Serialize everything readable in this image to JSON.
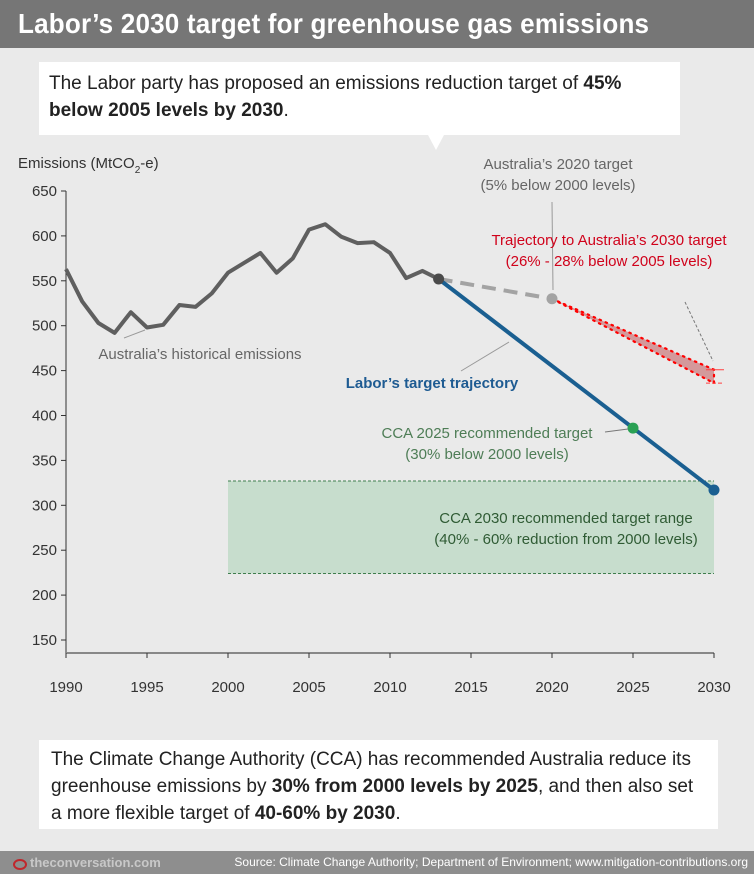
{
  "header": {
    "title": "Labor’s 2030 target for greenhouse gas emissions"
  },
  "callout": {
    "text_before": "The Labor party has proposed an emissions reduction target of ",
    "text_bold": "45% below 2005 levels by 2030",
    "text_after": "."
  },
  "bottom_note": {
    "part1": "The Climate Change Authority (CCA) has recommended Australia reduce its greenhouse emissions by ",
    "bold1": "30% from 2000 levels by 2025",
    "part2": ", and then also set a more flexible target of ",
    "bold2": "40-60% by 2030",
    "part3": "."
  },
  "footer": {
    "logo_text": "theconversation.com",
    "source": "Source: Climate Change Authority; Department of Environment; www.mitigation-contributions.org"
  },
  "chart_data": {
    "type": "line",
    "title": "Labor’s 2030 target for greenhouse gas emissions",
    "ylabel": "Emissions (MtCO2-e)",
    "ylabel_main": "Emissions (MtCO",
    "ylabel_sub": "2",
    "ylabel_tail": "-e)",
    "xlabel": "",
    "xlim": [
      1990,
      2030
    ],
    "ylim": [
      135,
      650
    ],
    "grid": false,
    "x_ticks": [
      "1990",
      "1995",
      "2000",
      "2005",
      "2010",
      "2015",
      "2020",
      "2025",
      "2030"
    ],
    "y_ticks": [
      "650",
      "600",
      "550",
      "500",
      "450",
      "400",
      "350",
      "300",
      "250",
      "200",
      "150"
    ],
    "series": [
      {
        "name": "Australia’s historical emissions",
        "color": "#5f5f5f",
        "x": [
          1990,
          1991,
          1992,
          1993,
          1994,
          1995,
          1996,
          1997,
          1998,
          1999,
          2000,
          2001,
          2002,
          2003,
          2004,
          2005,
          2006,
          2007,
          2008,
          2009,
          2010,
          2011,
          2012,
          2013
        ],
        "y": [
          563,
          527,
          503,
          492,
          515,
          498,
          501,
          523,
          521,
          536,
          559,
          570,
          581,
          559,
          575,
          607,
          613,
          599,
          592,
          593,
          581,
          553,
          561,
          552
        ]
      },
      {
        "name": "Australia’s 2020 target (5% below 2000 levels)",
        "color": "#a3a3a3",
        "style": "dashed",
        "x": [
          2013,
          2020
        ],
        "y": [
          552,
          530
        ]
      },
      {
        "name": "Labor’s target trajectory",
        "color": "#1a5f91",
        "x": [
          2013,
          2030
        ],
        "y": [
          552,
          317
        ]
      }
    ],
    "trajectory_2030_band": {
      "name": "Trajectory to Australia’s 2030 target (26% - 28% below 2005 levels)",
      "color": "#e3000f",
      "from": {
        "x": 2020,
        "y": 530
      },
      "to_upper": {
        "x": 2030,
        "y": 451
      },
      "to_lower": {
        "x": 2030,
        "y": 436
      }
    },
    "cca_2030_range": {
      "name": "CCA 2030 recommended target range (40% - 60% reduction from 2000 levels)",
      "x": [
        2000,
        2030
      ],
      "y": [
        224,
        327
      ],
      "color": "#c7ddcd"
    },
    "points": [
      {
        "name": "2013 latest emissions",
        "x": 2013,
        "y": 552,
        "color": "#4a4a4a"
      },
      {
        "name": "Australia’s 2020 target",
        "x": 2020,
        "y": 530,
        "color": "#a3a3a3"
      },
      {
        "name": "CCA 2025 recommended target",
        "x": 2025,
        "y": 386,
        "color": "#2aa154"
      },
      {
        "name": "Labor 2030 target",
        "x": 2030,
        "y": 317,
        "color": "#1a5f91"
      }
    ],
    "annotations": {
      "historical": "Australia’s historical emissions",
      "target2020_line1": "Australia’s 2020 target",
      "target2020_line2": "(5% below 2000 levels)",
      "trajectory_line1": "Trajectory to Australia’s 2030 target",
      "trajectory_line2": "(26% - 28% below 2005 levels)",
      "labor": "Labor’s target trajectory",
      "cca2025_line1": "CCA 2025 recommended target",
      "cca2025_line2": "(30% below 2000 levels)",
      "cca2030_line1": "CCA 2030 recommended target range",
      "cca2030_line2": "(40% - 60% reduction from 2000 levels)"
    }
  }
}
